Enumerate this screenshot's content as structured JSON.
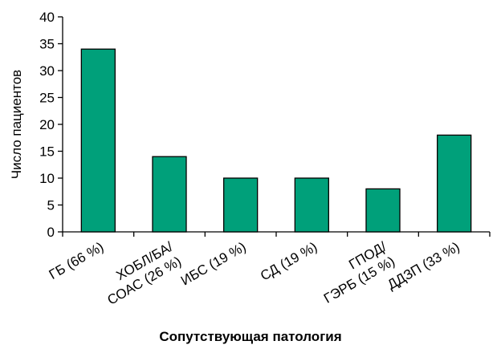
{
  "chart_data": {
    "type": "bar",
    "categories": [
      [
        "ГБ (66 %)"
      ],
      [
        "ХОБЛ/БА/",
        "СОАС (26 %)"
      ],
      [
        "ИБС (19 %)"
      ],
      [
        "СД (19 %)"
      ],
      [
        "ГПОД/",
        "ГЭРБ (15 %)"
      ],
      [
        "ДДЗП (33 %)"
      ]
    ],
    "values": [
      34,
      14,
      10,
      10,
      8,
      18
    ],
    "xlabel": "Сопутствующая патология",
    "ylabel": "Число пациентов",
    "ylim": [
      0,
      40
    ],
    "yticks": [
      0,
      5,
      10,
      15,
      20,
      25,
      30,
      35,
      40
    ],
    "bar_color": "#00a07a",
    "grid": false,
    "legend": "none"
  }
}
